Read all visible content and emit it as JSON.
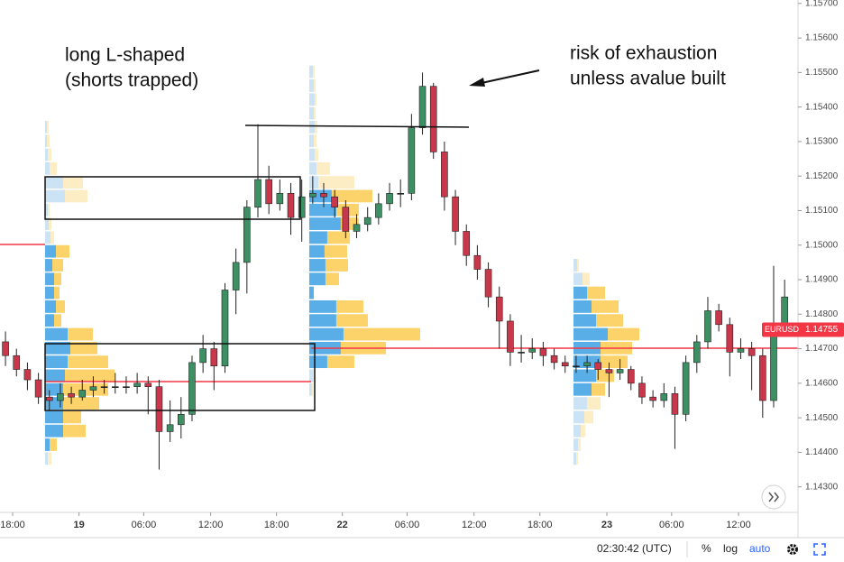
{
  "chart_data": {
    "type": "candlestick",
    "symbol": "EURUSD",
    "last_price": 1.14755,
    "annotations": [
      "long L-shaped",
      "(shorts trapped)",
      "risk of exhaustion",
      "unless avalue built"
    ],
    "up_color": "#3d8f64",
    "down_color": "#c8374a",
    "profile_colors": {
      "buy": "#5aaee8",
      "sell": "#fcd36a",
      "buy_outside": "#cce3f6",
      "sell_outside": "#fdedc4"
    },
    "xlim": [
      0,
      72.72
    ],
    "xticks": [
      {
        "value": 1.15,
        "label": "18:00"
      },
      {
        "value": 7.2,
        "label": "19"
      },
      {
        "value": 13.1,
        "label": "06:00"
      },
      {
        "value": 19.2,
        "label": "12:00"
      },
      {
        "value": 25.2,
        "label": "18:00"
      },
      {
        "value": 31.2,
        "label": "22"
      },
      {
        "value": 37.1,
        "label": "06:00"
      },
      {
        "value": 43.2,
        "label": "12:00"
      },
      {
        "value": 49.2,
        "label": "18:00"
      },
      {
        "value": 55.3,
        "label": "23"
      },
      {
        "value": 61.2,
        "label": "06:00"
      },
      {
        "value": 67.3,
        "label": "12:00"
      }
    ],
    "ylim": [
      1.14226,
      1.1571
    ],
    "yticks": [
      {
        "value": 1.157,
        "label": "1.15700"
      },
      {
        "value": 1.156,
        "label": "1.15600"
      },
      {
        "value": 1.155,
        "label": "1.15500"
      },
      {
        "value": 1.154,
        "label": "1.15400"
      },
      {
        "value": 1.153,
        "label": "1.15300"
      },
      {
        "value": 1.152,
        "label": "1.15200"
      },
      {
        "value": 1.151,
        "label": "1.15100"
      },
      {
        "value": 1.15,
        "label": "1.15000"
      },
      {
        "value": 1.149,
        "label": "1.14900"
      },
      {
        "value": 1.148,
        "label": "1.14800"
      },
      {
        "value": 1.147,
        "label": "1.14700"
      },
      {
        "value": 1.146,
        "label": "1.14600"
      },
      {
        "value": 1.145,
        "label": "1.14500"
      },
      {
        "value": 1.144,
        "label": "1.14400"
      },
      {
        "value": 1.143,
        "label": "1.14300"
      }
    ],
    "series": {
      "x": [
        0.5,
        1.5,
        2.5,
        3.5,
        4.5,
        5.5,
        6.5,
        7.5,
        8.5,
        9.5,
        10.5,
        11.5,
        12.5,
        13.5,
        14.5,
        15.5,
        16.5,
        17.5,
        18.5,
        19.5,
        20.5,
        21.5,
        22.5,
        23.5,
        24.5,
        25.5,
        26.5,
        27.5,
        28.5,
        29.5,
        30.5,
        31.5,
        32.5,
        33.5,
        34.5,
        35.5,
        36.5,
        37.5,
        38.5,
        39.5,
        40.5,
        41.5,
        42.5,
        43.5,
        44.5,
        45.5,
        46.5,
        47.5,
        48.5,
        49.5,
        50.5,
        51.5,
        52.5,
        53.5,
        54.5,
        55.5,
        56.5,
        57.5,
        58.5,
        59.5,
        60.5,
        61.5,
        62.5,
        63.5,
        64.5,
        65.5,
        66.5,
        67.5,
        68.5,
        69.5,
        70.5,
        71.5
      ],
      "open": [
        1.1472,
        1.1468,
        1.1464,
        1.1461,
        1.1456,
        1.1455,
        1.1457,
        1.1456,
        1.1458,
        1.1459,
        1.1459,
        1.1459,
        1.1459,
        1.146,
        1.1459,
        1.1446,
        1.1448,
        1.1451,
        1.1466,
        1.147,
        1.1465,
        1.1487,
        1.1495,
        1.1511,
        1.1519,
        1.1512,
        1.1515,
        1.1508,
        1.1514,
        1.1515,
        1.1514,
        1.1511,
        1.1504,
        1.1506,
        1.1508,
        1.1512,
        1.1515,
        1.1515,
        1.1534,
        1.1546,
        1.1527,
        1.1514,
        1.1504,
        1.1497,
        1.1493,
        1.1485,
        1.1478,
        1.1469,
        1.1469,
        1.147,
        1.1468,
        1.1466,
        1.1465,
        1.1465,
        1.1466,
        1.1464,
        1.1463,
        1.1464,
        1.146,
        1.1456,
        1.1455,
        1.1457,
        1.1451,
        1.1466,
        1.1472,
        1.1481,
        1.1477,
        1.1469,
        1.147,
        1.1468,
        1.1455,
        1.1477
      ],
      "high": [
        1.1475,
        1.147,
        1.1466,
        1.1463,
        1.1458,
        1.146,
        1.1459,
        1.1461,
        1.1462,
        1.1461,
        1.1463,
        1.1462,
        1.1463,
        1.1462,
        1.1461,
        1.1455,
        1.1456,
        1.1468,
        1.1474,
        1.1472,
        1.1489,
        1.1499,
        1.1513,
        1.1535,
        1.1523,
        1.1519,
        1.1518,
        1.1519,
        1.152,
        1.1518,
        1.1516,
        1.1513,
        1.1509,
        1.1511,
        1.1515,
        1.1518,
        1.1519,
        1.1538,
        1.155,
        1.1547,
        1.153,
        1.1516,
        1.1506,
        1.15,
        1.1495,
        1.1488,
        1.148,
        1.1474,
        1.1473,
        1.1472,
        1.147,
        1.1468,
        1.1468,
        1.1468,
        1.1467,
        1.1466,
        1.1467,
        1.1465,
        1.1462,
        1.1458,
        1.146,
        1.1459,
        1.1468,
        1.1474,
        1.1485,
        1.1483,
        1.1479,
        1.1473,
        1.1472,
        1.147,
        1.1494,
        1.149
      ],
      "low": [
        1.1465,
        1.1462,
        1.1458,
        1.1454,
        1.1452,
        1.1453,
        1.1454,
        1.1455,
        1.1456,
        1.1457,
        1.1457,
        1.1457,
        1.1457,
        1.1451,
        1.1435,
        1.1443,
        1.1444,
        1.1449,
        1.1463,
        1.1458,
        1.1463,
        1.148,
        1.1486,
        1.1508,
        1.1509,
        1.151,
        1.1503,
        1.1501,
        1.1512,
        1.1511,
        1.1508,
        1.1502,
        1.1502,
        1.1504,
        1.1506,
        1.151,
        1.1511,
        1.1513,
        1.1532,
        1.1525,
        1.151,
        1.15,
        1.1494,
        1.149,
        1.1482,
        1.147,
        1.1465,
        1.1466,
        1.1467,
        1.1465,
        1.1464,
        1.1463,
        1.1463,
        1.1463,
        1.1461,
        1.1456,
        1.1461,
        1.1458,
        1.1454,
        1.1453,
        1.1453,
        1.1441,
        1.1449,
        1.1463,
        1.147,
        1.1475,
        1.1462,
        1.1467,
        1.1458,
        1.145,
        1.1453,
        1.1475
      ],
      "close": [
        1.1468,
        1.1464,
        1.1461,
        1.1456,
        1.1455,
        1.1457,
        1.1456,
        1.1458,
        1.1459,
        1.1459,
        1.1459,
        1.1459,
        1.146,
        1.1459,
        1.1446,
        1.1448,
        1.1451,
        1.1466,
        1.147,
        1.1465,
        1.1487,
        1.1495,
        1.1511,
        1.1519,
        1.1512,
        1.1515,
        1.1508,
        1.1514,
        1.1515,
        1.1514,
        1.1511,
        1.1504,
        1.1506,
        1.1508,
        1.1512,
        1.1515,
        1.1515,
        1.1534,
        1.1546,
        1.1527,
        1.1514,
        1.1504,
        1.1497,
        1.1493,
        1.1485,
        1.1478,
        1.1469,
        1.1469,
        1.147,
        1.1468,
        1.1466,
        1.1465,
        1.1465,
        1.1466,
        1.1464,
        1.1463,
        1.1464,
        1.146,
        1.1456,
        1.1455,
        1.1457,
        1.1451,
        1.1466,
        1.1472,
        1.1481,
        1.1477,
        1.1469,
        1.147,
        1.1468,
        1.1455,
        1.1477,
        1.1485
      ]
    },
    "profiles": [
      {
        "x": 4.11,
        "value_area": [
          1.144,
          1.1496
        ],
        "levels": [
          1.1436,
          1.144,
          1.1444,
          1.1448,
          1.1452,
          1.1456,
          1.146,
          1.1464,
          1.1468,
          1.1472,
          1.1476,
          1.148,
          1.1484,
          1.1488,
          1.1492,
          1.1496,
          1.15,
          1.1504,
          1.1508,
          1.1512,
          1.1516,
          1.152,
          1.1524,
          1.1528,
          1.1532
        ],
        "buy": [
          3,
          5,
          20,
          20,
          20,
          20,
          22,
          25,
          28,
          25,
          10,
          12,
          10,
          10,
          8,
          12,
          6,
          4,
          3,
          22,
          20,
          5,
          3,
          2,
          2
        ],
        "sell": [
          4,
          8,
          25,
          20,
          40,
          50,
          55,
          45,
          30,
          28,
          8,
          10,
          6,
          8,
          12,
          15,
          4,
          3,
          2,
          25,
          22,
          8,
          4,
          3,
          2
        ]
      },
      {
        "x": 28.18,
        "value_area": [
          1.1464,
          1.1512
        ],
        "levels": [
          1.1456,
          1.146,
          1.1464,
          1.1468,
          1.1472,
          1.1476,
          1.148,
          1.1484,
          1.1488,
          1.1492,
          1.1496,
          1.15,
          1.1504,
          1.1508,
          1.1512,
          1.1516,
          1.152,
          1.1524,
          1.1528,
          1.1532,
          1.1536,
          1.154,
          1.1544,
          1.1548
        ],
        "buy": [
          3,
          4,
          20,
          35,
          38,
          30,
          30,
          5,
          18,
          18,
          17,
          20,
          35,
          30,
          25,
          10,
          8,
          6,
          5,
          6,
          5,
          6,
          5,
          4
        ],
        "sell": [
          1,
          2,
          30,
          50,
          85,
          35,
          30,
          0,
          15,
          25,
          25,
          25,
          20,
          25,
          45,
          40,
          15,
          4,
          3,
          3,
          2,
          2,
          2,
          2
        ]
      },
      {
        "x": 52.26,
        "value_area": [
          1.1456,
          1.1484
        ],
        "levels": [
          1.1436,
          1.144,
          1.1444,
          1.1448,
          1.1452,
          1.1456,
          1.146,
          1.1464,
          1.1468,
          1.1472,
          1.1476,
          1.148,
          1.1484,
          1.1488,
          1.1492
        ],
        "buy": [
          3,
          5,
          8,
          12,
          15,
          20,
          25,
          30,
          30,
          38,
          25,
          20,
          15,
          10,
          4
        ],
        "sell": [
          2,
          3,
          5,
          10,
          15,
          15,
          20,
          30,
          35,
          35,
          30,
          30,
          20,
          8,
          2
        ]
      }
    ]
  },
  "status_bar": {
    "clock": "02:30:42 (UTC)",
    "buttons": [
      "%",
      "log",
      "auto"
    ]
  }
}
